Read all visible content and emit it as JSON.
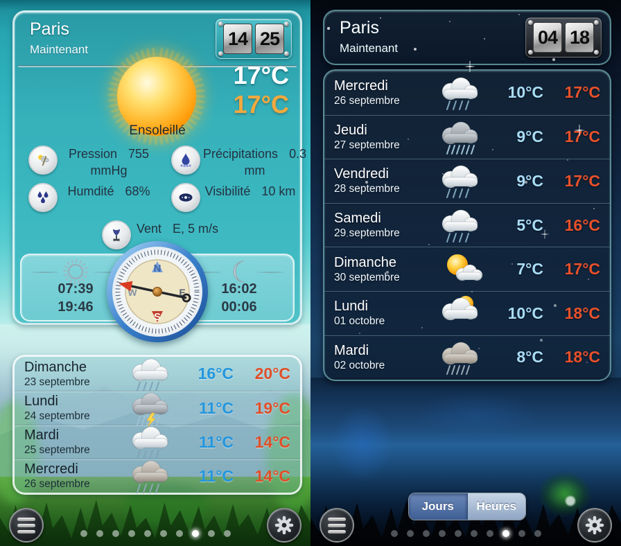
{
  "colors": {
    "low_temp_day": "#2496dd",
    "high_temp": "#e0502c",
    "low_temp_night": "#a9dcf5",
    "secondary_temp_orange": "#f2a93e",
    "day_background_teal": "#30b4bf",
    "night_background_navy": "#102540"
  },
  "left_panel": {
    "city": "Paris",
    "subtitle": "Maintenant",
    "clock": {
      "hours": "14",
      "minutes": "25"
    },
    "current": {
      "icon": "sun",
      "temp_now": "17°C",
      "temp_secondary": "17°C",
      "condition": "Ensoleillé"
    },
    "details": [
      {
        "icon": "barometer-icon",
        "label": "Pression",
        "value": "755 mmHg"
      },
      {
        "icon": "raindrop-icon",
        "label": "Précipitations",
        "value": "0.3 mm"
      },
      {
        "icon": "humidity-icon",
        "label": "Humdité",
        "value": "68%"
      },
      {
        "icon": "eye-icon",
        "label": "Visibilité",
        "value": "10 km"
      },
      {
        "icon": "windsock-icon",
        "label": "Vent",
        "value": "E, 5 m/s"
      }
    ],
    "sun_times": {
      "rise": "07:39",
      "set": "19:46"
    },
    "moon_times": {
      "rise": "16:02",
      "set": "00:06"
    },
    "compass": {
      "north": "N",
      "east": "E",
      "south": "S",
      "west": "W"
    },
    "forecast": [
      {
        "day": "Dimanche",
        "date": "23 septembre",
        "icon": "rain",
        "low": "16°C",
        "high": "20°C"
      },
      {
        "day": "Lundi",
        "date": "24 septembre",
        "icon": "thunderstorm",
        "low": "11°C",
        "high": "19°C"
      },
      {
        "day": "Mardi",
        "date": "25 septembre",
        "icon": "rain",
        "low": "11°C",
        "high": "14°C"
      },
      {
        "day": "Mercredi",
        "date": "26 septembre",
        "icon": "rain-gray",
        "low": "11°C",
        "high": "14°C"
      }
    ],
    "pager": {
      "count": 10,
      "active_index": 7
    }
  },
  "right_panel": {
    "city": "Paris",
    "subtitle": "Maintenant",
    "clock": {
      "hours": "04",
      "minutes": "18"
    },
    "forecast": [
      {
        "day": "Mercredi",
        "date": "26 septembre",
        "icon": "rain",
        "low": "10°C",
        "high": "17°C"
      },
      {
        "day": "Jeudi",
        "date": "27 septembre",
        "icon": "rain-dark",
        "low": "9°C",
        "high": "17°C"
      },
      {
        "day": "Vendredi",
        "date": "28 septembre",
        "icon": "rain",
        "low": "9°C",
        "high": "17°C"
      },
      {
        "day": "Samedi",
        "date": "29 septembre",
        "icon": "rain",
        "low": "5°C",
        "high": "16°C"
      },
      {
        "day": "Dimanche",
        "date": "30 septembre",
        "icon": "sun-cloud",
        "low": "7°C",
        "high": "17°C"
      },
      {
        "day": "Lundi",
        "date": "01 octobre",
        "icon": "cloud-sun",
        "low": "10°C",
        "high": "18°C"
      },
      {
        "day": "Mardi",
        "date": "02 octobre",
        "icon": "drizzle",
        "low": "8°C",
        "high": "18°C"
      }
    ],
    "toggle": {
      "options": [
        "Jours",
        "Heures"
      ],
      "selected": "Jours"
    },
    "pager": {
      "count": 10,
      "active_index": 7
    }
  }
}
